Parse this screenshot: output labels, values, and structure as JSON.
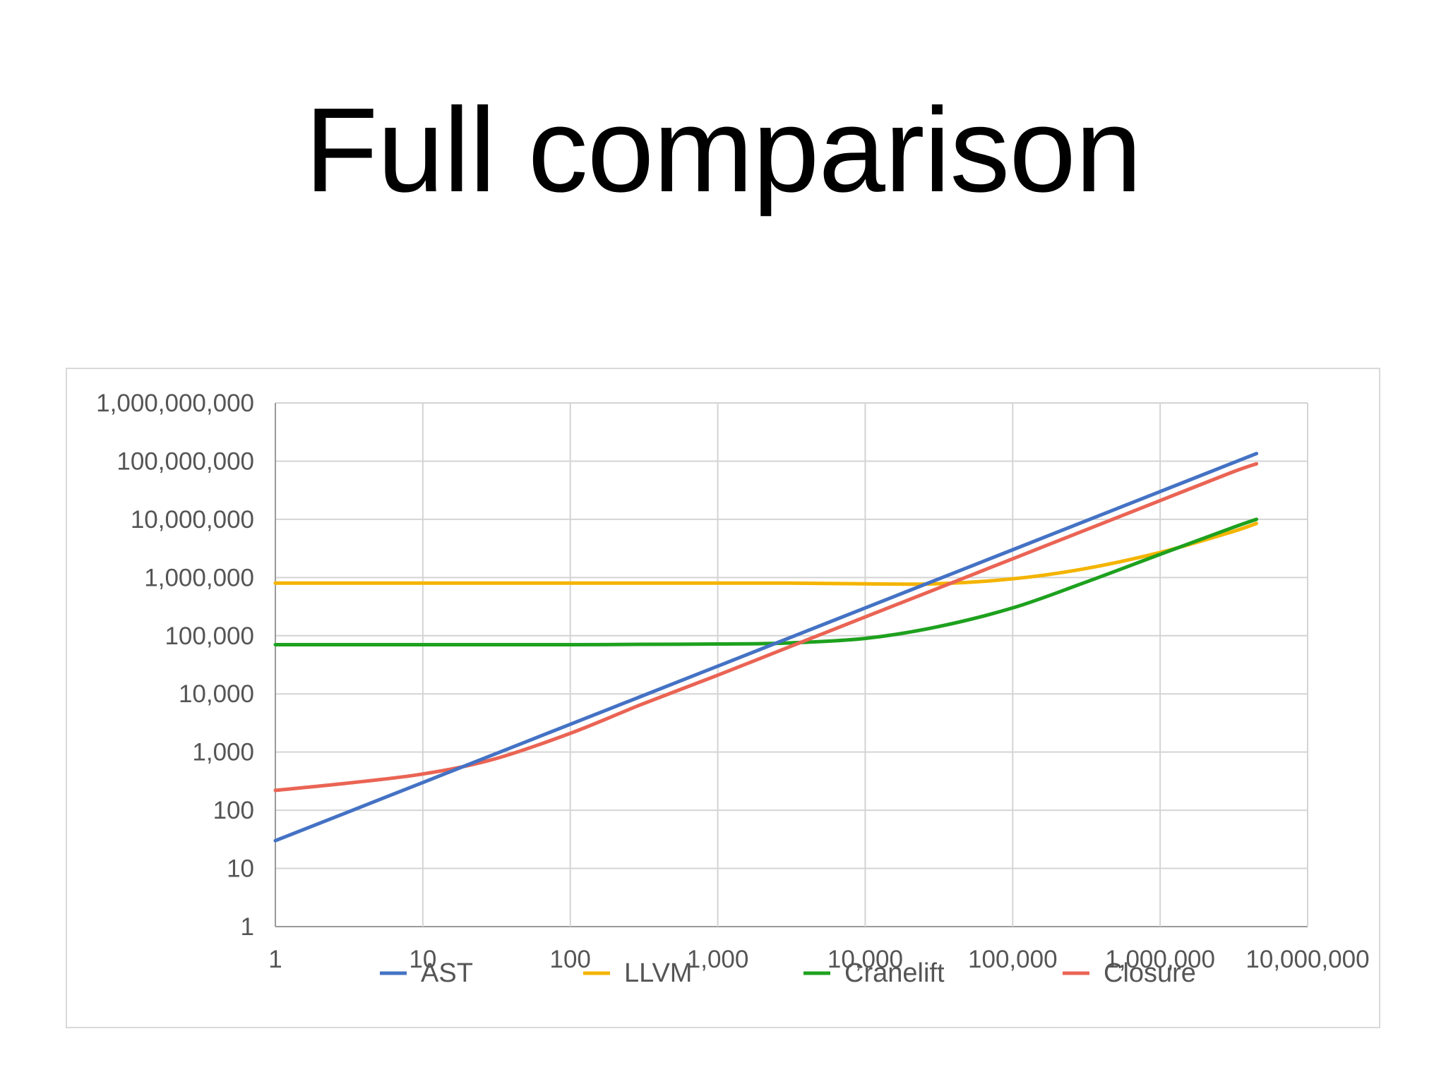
{
  "slide": {
    "title": "Full comparison"
  },
  "chart_data": {
    "type": "line",
    "title": "",
    "xlabel": "",
    "ylabel": "",
    "xscale": "log",
    "yscale": "log",
    "xlim": [
      1,
      10000000
    ],
    "ylim": [
      1,
      1000000000
    ],
    "grid": true,
    "legend_position": "bottom",
    "x_ticks": [
      1,
      10,
      100,
      1000,
      10000,
      100000,
      1000000,
      10000000
    ],
    "x_tick_labels": [
      "1",
      "10",
      "100",
      "1,000",
      "10,000",
      "100,000",
      "1,000,000",
      "10,000,000"
    ],
    "y_ticks": [
      1,
      10,
      100,
      1000,
      10000,
      100000,
      1000000,
      10000000,
      100000000,
      1000000000
    ],
    "y_tick_labels": [
      "1",
      "10",
      "100",
      "1,000",
      "10,000",
      "100,000",
      "1,000,000",
      "10,000,000",
      "100,000,000",
      "1,000,000,000"
    ],
    "x": [
      1,
      3,
      10,
      30,
      100,
      300,
      1000,
      3000,
      10000,
      30000,
      100000,
      300000,
      1000000,
      3000000,
      4500000
    ],
    "series": [
      {
        "name": "AST",
        "color": "#4472c4",
        "values": [
          30,
          90,
          300,
          900,
          3000,
          9000,
          30000,
          90000,
          300000,
          900000,
          3000000,
          9000000,
          30000000,
          90000000,
          135000000
        ]
      },
      {
        "name": "LLVM",
        "color": "#f4b400",
        "values": [
          800000,
          800000,
          800000,
          800000,
          800000,
          800000,
          800000,
          800000,
          780000,
          780000,
          950000,
          1400000,
          2700000,
          6000000,
          8500000
        ]
      },
      {
        "name": "Cranelift",
        "color": "#1ea11e",
        "values": [
          70000,
          70000,
          70000,
          70000,
          70000,
          71000,
          72000,
          75000,
          90000,
          140000,
          300000,
          800000,
          2500000,
          7000000,
          10000000
        ]
      },
      {
        "name": "Closure",
        "color": "#ea6454",
        "values": [
          220,
          290,
          420,
          750,
          2100,
          6500,
          21000,
          63000,
          210000,
          630000,
          2100000,
          6300000,
          21000000,
          63000000,
          90000000
        ]
      }
    ]
  }
}
